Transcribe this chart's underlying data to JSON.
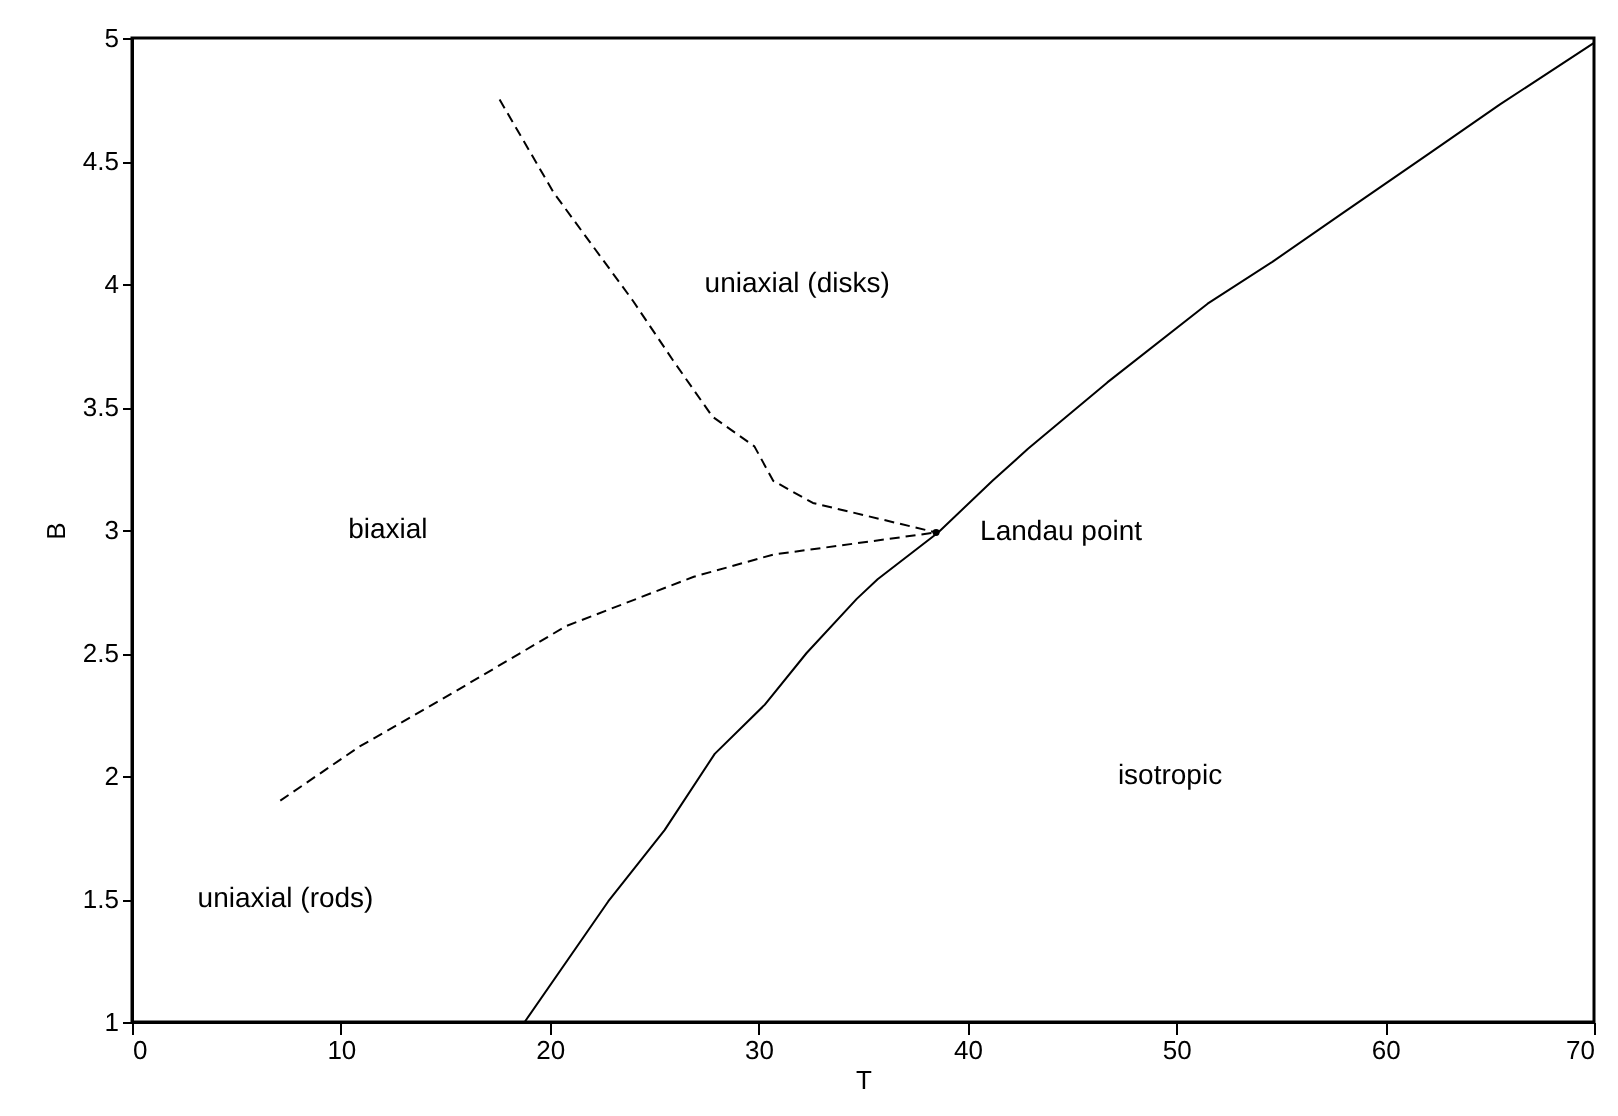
{
  "chart_data": {
    "type": "line",
    "xlabel": "T",
    "ylabel": "B",
    "xlim": [
      0,
      70
    ],
    "ylim": [
      1,
      5
    ],
    "xticks": [
      0,
      10,
      20,
      30,
      40,
      50,
      60,
      70
    ],
    "yticks": [
      1,
      1.5,
      2,
      2.5,
      3,
      3.5,
      4,
      4.5,
      5
    ],
    "grid": false,
    "series": [
      {
        "color": "#000000",
        "line_style": "solid",
        "x": [
          18.8,
          22.8,
          25.5,
          27.9,
          30.3,
          32.3,
          34.7,
          35.7,
          38.6,
          41.2,
          42.9,
          46.7,
          51.5,
          54.6,
          58,
          62.1,
          65.5,
          70
        ],
        "values": [
          1,
          1.49,
          1.78,
          2.09,
          2.29,
          2.5,
          2.72,
          2.8,
          2.99,
          3.2,
          3.33,
          3.6,
          3.92,
          4.09,
          4.29,
          4.53,
          4.73,
          4.98
        ]
      },
      {
        "color": "#000000",
        "line_style": "dashed",
        "x": [
          17.6,
          20.2,
          24.0,
          25.9,
          27.8,
          29.8,
          30.7,
          32.6,
          38.5
        ],
        "values": [
          4.75,
          4.37,
          3.93,
          3.69,
          3.46,
          3.34,
          3.2,
          3.11,
          2.99
        ]
      },
      {
        "color": "#000000",
        "line_style": "dashed",
        "x": [
          7.1,
          10.9,
          14.8,
          20.8,
          26.9,
          30.7,
          38.5
        ],
        "values": [
          1.9,
          2.12,
          2.31,
          2.61,
          2.81,
          2.9,
          2.99
        ]
      },
      {
        "type": "scatter",
        "color": "#000000",
        "marker": "circle",
        "x": [
          38.5
        ],
        "values": [
          2.99
        ]
      }
    ],
    "annotations": [
      "uniaxial (disks)",
      "biaxial",
      {
        "text": "Landau point",
        "x": 38.5,
        "y": 2.99
      },
      "isotropic",
      "uniaxial (rods)"
    ]
  }
}
